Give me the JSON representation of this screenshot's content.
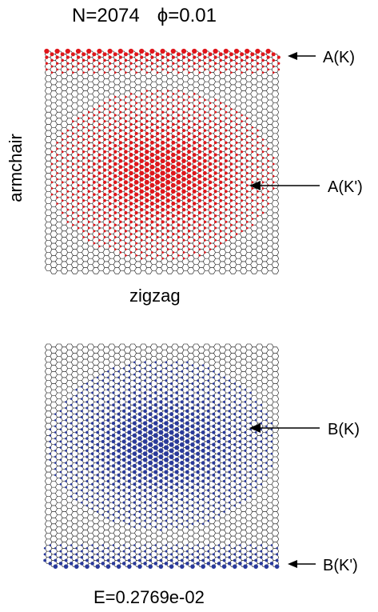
{
  "title": {
    "n_label": "N=2074",
    "phi_symbol": "ϕ",
    "phi_value": "=0.01"
  },
  "axis_labels": {
    "horizontal": "zigzag",
    "vertical": "armchair"
  },
  "energy_label": "E=0.2769e-02",
  "top_panel": {
    "site_color": "#e0161b",
    "annotations": [
      {
        "label": "A(K)"
      },
      {
        "label": "A(K')"
      }
    ]
  },
  "bottom_panel": {
    "site_color": "#2a3a9a",
    "annotations": [
      {
        "label": "B(K)"
      },
      {
        "label": "B(K')"
      }
    ]
  },
  "lattice_edge_color": "#000000"
}
